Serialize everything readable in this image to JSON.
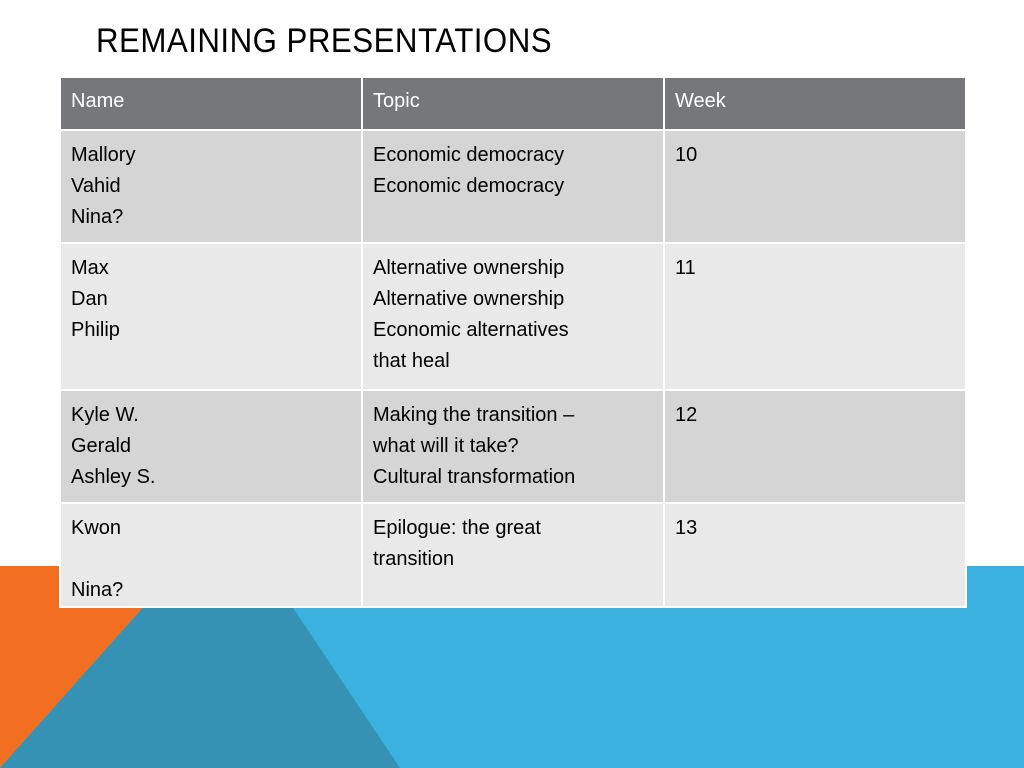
{
  "slide": {
    "title": "REMAINING PRESENTATIONS",
    "colors": {
      "header_bg": "#76777a",
      "row_dark": "#d5d5d6",
      "row_light": "#e9e9ea",
      "accent_orange": "#f26f21",
      "accent_blue": "#3ab1de",
      "accent_blue_dark": "#3592b4"
    }
  },
  "table": {
    "headers": [
      "Name",
      "Topic",
      "Week"
    ],
    "rows": [
      {
        "names": [
          "Mallory",
          "Vahid",
          "Nina?"
        ],
        "topics": [
          "Economic democracy",
          "Economic democracy"
        ],
        "week": "10"
      },
      {
        "names": [
          "Max",
          "Dan",
          "Philip"
        ],
        "topics": [
          "Alternative ownership",
          "Alternative ownership",
          "Economic alternatives",
          "that heal"
        ],
        "week": "11"
      },
      {
        "names": [
          "Kyle W.",
          "Gerald",
          "Ashley S."
        ],
        "topics": [
          "Making the transition –",
          "what will it take?",
          "Cultural transformation"
        ],
        "week": "12"
      },
      {
        "names": [
          "Kwon",
          "",
          "Nina?"
        ],
        "topics": [
          "Epilogue: the great",
          "transition"
        ],
        "week": "13"
      }
    ]
  }
}
